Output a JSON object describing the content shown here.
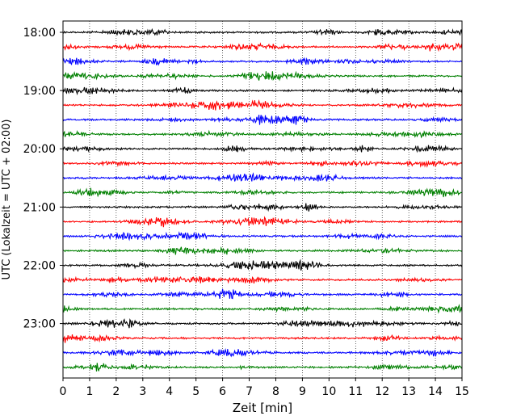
{
  "chart_data": {
    "type": "line",
    "title": "",
    "xlabel": "Zeit  [min]",
    "ylabel": "UTC (Lokalzeit = UTC + 02:00)",
    "xlim": [
      0,
      15
    ],
    "x_ticks": [
      "0",
      "1",
      "2",
      "3",
      "4",
      "5",
      "6",
      "7",
      "8",
      "9",
      "10",
      "11",
      "12",
      "13",
      "14",
      "15"
    ],
    "y_tick_labels": [
      "18:00",
      "19:00",
      "20:00",
      "21:00",
      "22:00",
      "23:00"
    ],
    "trace_interval_min": 15,
    "start_time": "18:00",
    "grid": "vertical dotted lines at each minute",
    "legend": "none",
    "color_cycle": [
      "#000000",
      "#ff0000",
      "#0000ff",
      "#008000"
    ],
    "traces": [
      {
        "time": "18:00",
        "color": "#000000"
      },
      {
        "time": "18:15",
        "color": "#ff0000"
      },
      {
        "time": "18:30",
        "color": "#0000ff"
      },
      {
        "time": "18:45",
        "color": "#008000"
      },
      {
        "time": "19:00",
        "color": "#000000"
      },
      {
        "time": "19:15",
        "color": "#ff0000"
      },
      {
        "time": "19:30",
        "color": "#0000ff"
      },
      {
        "time": "19:45",
        "color": "#008000"
      },
      {
        "time": "20:00",
        "color": "#000000"
      },
      {
        "time": "20:15",
        "color": "#ff0000"
      },
      {
        "time": "20:30",
        "color": "#0000ff"
      },
      {
        "time": "20:45",
        "color": "#008000"
      },
      {
        "time": "21:00",
        "color": "#000000"
      },
      {
        "time": "21:15",
        "color": "#ff0000"
      },
      {
        "time": "21:30",
        "color": "#0000ff"
      },
      {
        "time": "21:45",
        "color": "#008000"
      },
      {
        "time": "22:00",
        "color": "#000000"
      },
      {
        "time": "22:15",
        "color": "#ff0000"
      },
      {
        "time": "22:30",
        "color": "#0000ff"
      },
      {
        "time": "22:45",
        "color": "#008000"
      },
      {
        "time": "23:00",
        "color": "#000000"
      },
      {
        "time": "23:15",
        "color": "#ff0000"
      },
      {
        "time": "23:30",
        "color": "#0000ff"
      },
      {
        "time": "23:45",
        "color": "#008000"
      }
    ]
  }
}
